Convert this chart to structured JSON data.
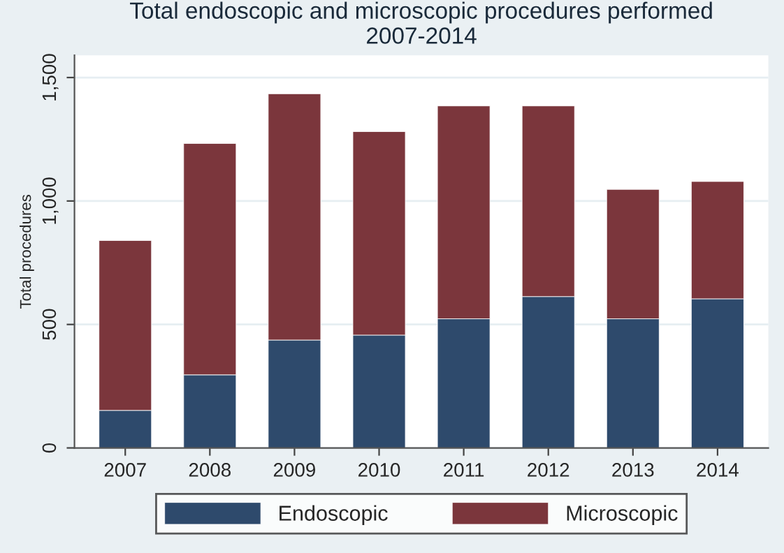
{
  "chart_data": {
    "type": "bar",
    "title": "Total endoscopic and microscopic procedures performed\n2007-2014",
    "ylabel": "Total procedures",
    "categories": [
      "2007",
      "2008",
      "2009",
      "2010",
      "2011",
      "2012",
      "2013",
      "2014"
    ],
    "stacked": true,
    "series": [
      {
        "name": "Endoscopic",
        "color": "#2e4a6c",
        "values": [
          152,
          296,
          437,
          457,
          523,
          613,
          523,
          604
        ]
      },
      {
        "name": "Microscopic",
        "color": "#7b363c",
        "values": [
          688,
          937,
          997,
          824,
          862,
          772,
          524,
          475
        ]
      }
    ],
    "ylim": [
      0,
      1590
    ],
    "yticks": [
      0,
      {
        "value": 500,
        "label": "500"
      },
      {
        "value": 1000,
        "label": "1,000"
      },
      {
        "value": 1500,
        "label": "1,500"
      }
    ],
    "grid": "y",
    "legend": "bottom"
  }
}
